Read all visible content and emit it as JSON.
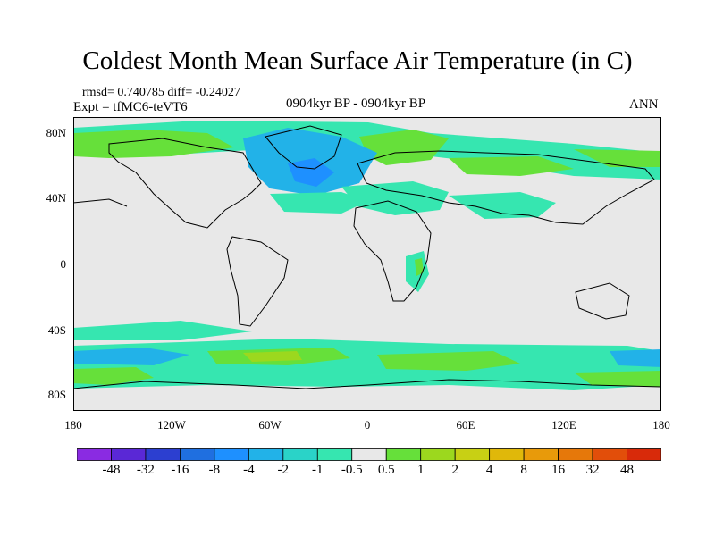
{
  "title": "Coldest Month Mean Surface Air Temperature (in C)",
  "stats": {
    "rmsd": "rmsd= 0.740785 diff= -0.24027",
    "expt": "Expt = tfMC6-teVT6",
    "period": "0904kyr BP - 0904kyr BP",
    "season": "ANN"
  },
  "axes": {
    "lat_labels": [
      "80N",
      "40N",
      "0",
      "40S",
      "80S"
    ],
    "lon_labels": [
      "180",
      "120W",
      "60W",
      "0",
      "60E",
      "120E",
      "180"
    ]
  },
  "colorbar": {
    "colors": [
      "#8a2be2",
      "#5a28d6",
      "#2c3fd0",
      "#1f6fe0",
      "#1e90ff",
      "#22b2e8",
      "#2ad3c8",
      "#36e6b0",
      "#e8e8e8",
      "#66e03a",
      "#9cd81e",
      "#c8d014",
      "#e0b80a",
      "#e89a0a",
      "#e6780a",
      "#e24e0a",
      "#d82a0a"
    ],
    "labels": [
      "-48",
      "-32",
      "-16",
      "-8",
      "-4",
      "-2",
      "-1",
      "-0.5",
      "0.5",
      "1",
      "2",
      "4",
      "8",
      "16",
      "32",
      "48"
    ]
  },
  "map_colors": {
    "land_fill": "#e8e8e8",
    "cool_light": "#36e6b0",
    "cool_mid": "#22b2e8",
    "cool_dark": "#1e90ff",
    "warm_light": "#66e03a",
    "warm_mid": "#9cd81e"
  }
}
